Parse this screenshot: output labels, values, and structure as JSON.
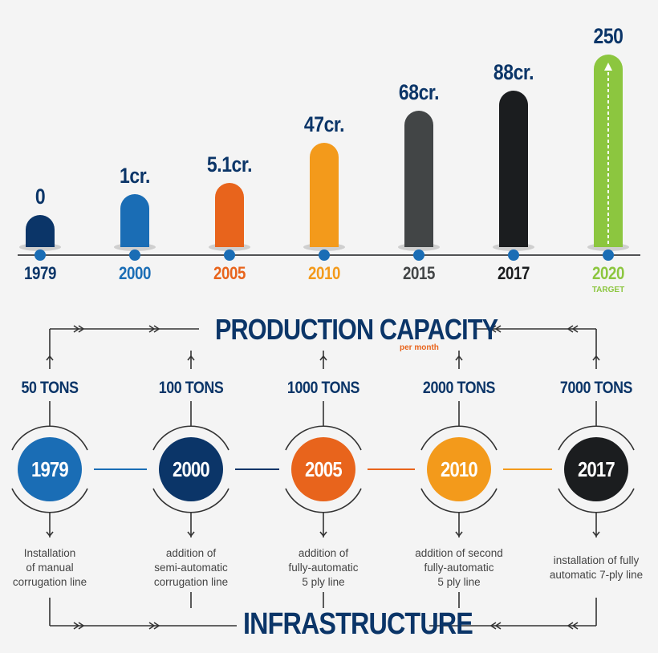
{
  "chart_data": {
    "type": "bar",
    "categories": [
      "1979",
      "2000",
      "2005",
      "2010",
      "2015",
      "2017",
      "2020"
    ],
    "values": [
      0,
      1,
      5.1,
      47,
      68,
      88,
      250
    ],
    "value_labels": [
      "0",
      "1cr.",
      "5.1cr.",
      "47cr.",
      "68cr.",
      "88cr.",
      "250"
    ],
    "category_note": {
      "2020": "TARGET"
    },
    "colors": [
      "#0b3568",
      "#1a6db5",
      "#e8641c",
      "#f39a1b",
      "#424546",
      "#1b1d1f",
      "#8cc63f"
    ]
  },
  "production": {
    "title": "PRODUCTION CAPACITY",
    "subtitle": "per month",
    "subtitle_color": "#e8641c"
  },
  "infrastructure": {
    "title": "INFRASTRUCTURE"
  },
  "milestones": [
    {
      "year": "1979",
      "tons": "50 TONS",
      "color": "#1a6db5",
      "desc": [
        "Installation",
        "of manual",
        "corrugation line"
      ]
    },
    {
      "year": "2000",
      "tons": "100 TONS",
      "color": "#0b3568",
      "desc": [
        "addition of",
        "semi-automatic",
        "corrugation line"
      ]
    },
    {
      "year": "2005",
      "tons": "1000 TONS",
      "color": "#e8641c",
      "desc": [
        "addition of",
        "fully-automatic",
        "5 ply line"
      ]
    },
    {
      "year": "2010",
      "tons": "2000 TONS",
      "color": "#f39a1b",
      "desc": [
        "addition of second",
        "fully-automatic",
        "5 ply line"
      ]
    },
    {
      "year": "2017",
      "tons": "7000 TONS",
      "color": "#1b1d1f",
      "desc": [
        "installation of fully",
        "automatic 7-ply line"
      ]
    }
  ]
}
